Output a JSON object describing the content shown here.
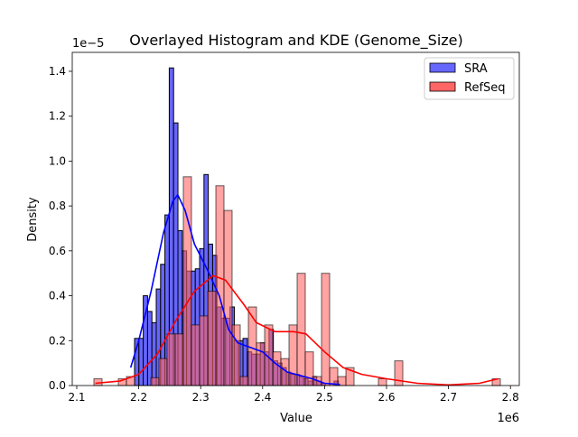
{
  "chart_data": {
    "type": "bar",
    "title": "Overlayed Histogram and KDE (Genome_Size)",
    "xlabel": "Value",
    "ylabel": "Density",
    "x_offset_label": "1e6",
    "y_offset_label": "1e−5",
    "xlim": [
      2.115,
      2.8
    ],
    "ylim": [
      0,
      1.485
    ],
    "xticks": [
      2.1,
      2.2,
      2.3,
      2.4,
      2.5,
      2.6,
      2.7,
      2.8
    ],
    "xtick_labels": [
      "2.1",
      "2.2",
      "2.3",
      "2.4",
      "2.5",
      "2.6",
      "2.7",
      "2.8"
    ],
    "yticks": [
      0,
      0.2,
      0.4,
      0.6,
      0.8,
      1.0,
      1.2,
      1.4
    ],
    "ytick_labels": [
      "0.0",
      "0.2",
      "0.4",
      "0.6",
      "0.8",
      "1.0",
      "1.2",
      "1.4"
    ],
    "grid": false,
    "legend_position": "top-right",
    "series": [
      {
        "name": "SRA",
        "color": "#0000ff",
        "bar_color": "#6666ff",
        "bin_start": 2.1933,
        "bin_width": 0.007,
        "values": [
          0.21,
          0.21,
          0.4,
          0.33,
          0.28,
          0.43,
          0.54,
          0.76,
          1.415,
          1.17,
          0.69,
          0.6,
          0.51,
          0.51,
          0.52,
          0.61,
          0.94,
          0.63,
          0.58,
          0.35,
          0.3,
          0.3,
          0.35,
          0.2,
          0.2,
          0.21,
          0.15,
          0.14,
          0.14,
          0.19,
          0.15,
          0.25,
          0.11,
          0.1,
          0.08,
          0.06,
          0.05,
          0.05,
          0.04,
          0.03,
          0.02,
          0.04,
          0.02,
          0.01,
          0,
          0,
          0.02
        ],
        "kde": [
          [
            2.187,
            0.08
          ],
          [
            2.2,
            0.2
          ],
          [
            2.22,
            0.42
          ],
          [
            2.24,
            0.68
          ],
          [
            2.255,
            0.82
          ],
          [
            2.263,
            0.85
          ],
          [
            2.275,
            0.78
          ],
          [
            2.29,
            0.63
          ],
          [
            2.31,
            0.52
          ],
          [
            2.33,
            0.4
          ],
          [
            2.345,
            0.25
          ],
          [
            2.36,
            0.19
          ],
          [
            2.38,
            0.17
          ],
          [
            2.4,
            0.15
          ],
          [
            2.42,
            0.1
          ],
          [
            2.44,
            0.06
          ],
          [
            2.46,
            0.045
          ],
          [
            2.48,
            0.03
          ],
          [
            2.5,
            0.01
          ],
          [
            2.525,
            0.005
          ]
        ]
      },
      {
        "name": "RefSeq",
        "color": "#ff0000",
        "bar_color": "#ff6666",
        "bin_start": 2.1277,
        "bin_width": 0.01312,
        "values": [
          0.03,
          0,
          0,
          0.03,
          0.04,
          0,
          0,
          0.035,
          0.12,
          0.23,
          0.23,
          0.93,
          0.27,
          0.31,
          0.42,
          0.89,
          0.78,
          0.27,
          0.04,
          0.35,
          0.19,
          0.27,
          0.15,
          0.12,
          0.27,
          0.5,
          0.15,
          0.04,
          0.5,
          0.08,
          0.04,
          0.08,
          0,
          0,
          0,
          0.03,
          0,
          0.11,
          0,
          0,
          0,
          0,
          0,
          0,
          0,
          0,
          0,
          0,
          0,
          0.03
        ],
        "kde": [
          [
            2.13,
            0.01
          ],
          [
            2.17,
            0.02
          ],
          [
            2.2,
            0.05
          ],
          [
            2.23,
            0.14
          ],
          [
            2.26,
            0.29
          ],
          [
            2.29,
            0.42
          ],
          [
            2.32,
            0.49
          ],
          [
            2.34,
            0.47
          ],
          [
            2.37,
            0.36
          ],
          [
            2.39,
            0.28
          ],
          [
            2.42,
            0.24
          ],
          [
            2.45,
            0.24
          ],
          [
            2.47,
            0.23
          ],
          [
            2.5,
            0.15
          ],
          [
            2.53,
            0.08
          ],
          [
            2.56,
            0.05
          ],
          [
            2.6,
            0.03
          ],
          [
            2.65,
            0.01
          ],
          [
            2.7,
            0.003
          ],
          [
            2.75,
            0.01
          ],
          [
            2.78,
            0.03
          ]
        ]
      }
    ]
  }
}
